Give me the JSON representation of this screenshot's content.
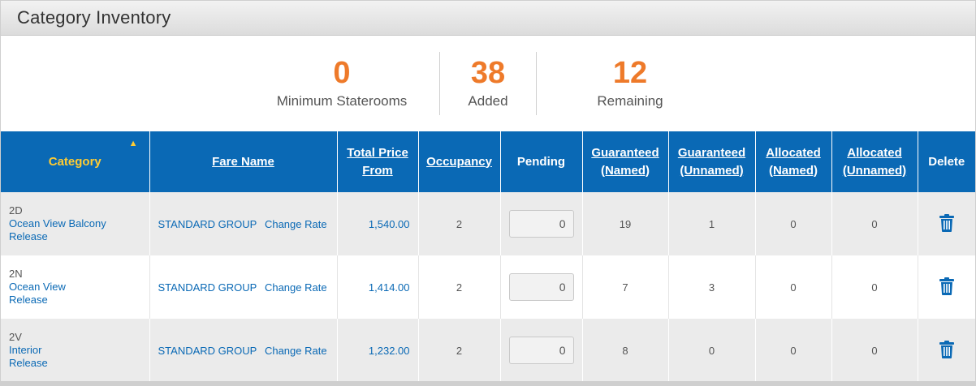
{
  "panel": {
    "title": "Category Inventory"
  },
  "summary": {
    "min_staterooms": {
      "value": "0",
      "label": "Minimum Staterooms"
    },
    "added": {
      "value": "38",
      "label": "Added"
    },
    "remaining": {
      "value": "12",
      "label": "Remaining"
    }
  },
  "table": {
    "headers": {
      "category": "Category",
      "fare_name": "Fare Name",
      "total_price_1": "Total Price",
      "total_price_2": "From",
      "occupancy": "Occupancy",
      "pending": "Pending",
      "guaranteed_named_1": "Guaranteed",
      "guaranteed_named_2": "(Named)",
      "guaranteed_unnamed_1": "Guaranteed",
      "guaranteed_unnamed_2": "(Unnamed)",
      "allocated_named_1": "Allocated",
      "allocated_named_2": "(Named)",
      "allocated_unnamed_1": "Allocated",
      "allocated_unnamed_2": "(Unnamed)",
      "delete": "Delete"
    },
    "sort_indicator": "▲",
    "rows": [
      {
        "code": "2D",
        "name": "Ocean View Balcony",
        "status": "Release",
        "fare_name": "STANDARD GROUP",
        "change_rate": "Change Rate",
        "price": "1,540.00",
        "occupancy": "2",
        "pending": "0",
        "guaranteed_named": "19",
        "guaranteed_unnamed": "1",
        "allocated_named": "0",
        "allocated_unnamed": "0"
      },
      {
        "code": "2N",
        "name": "Ocean View",
        "status": "Release",
        "fare_name": "STANDARD GROUP",
        "change_rate": "Change Rate",
        "price": "1,414.00",
        "occupancy": "2",
        "pending": "0",
        "guaranteed_named": "7",
        "guaranteed_unnamed": "3",
        "allocated_named": "0",
        "allocated_unnamed": "0"
      },
      {
        "code": "2V",
        "name": "Interior",
        "status": "Release",
        "fare_name": "STANDARD GROUP",
        "change_rate": "Change Rate",
        "price": "1,232.00",
        "occupancy": "2",
        "pending": "0",
        "guaranteed_named": "8",
        "guaranteed_unnamed": "0",
        "allocated_named": "0",
        "allocated_unnamed": "0"
      }
    ]
  },
  "colors": {
    "accent": "#ee7a2a",
    "header_blue": "#0a69b5",
    "sort_yellow": "#ffcc33"
  },
  "icons": {
    "delete": "trash-icon",
    "sort": "sort-ascending-icon"
  }
}
